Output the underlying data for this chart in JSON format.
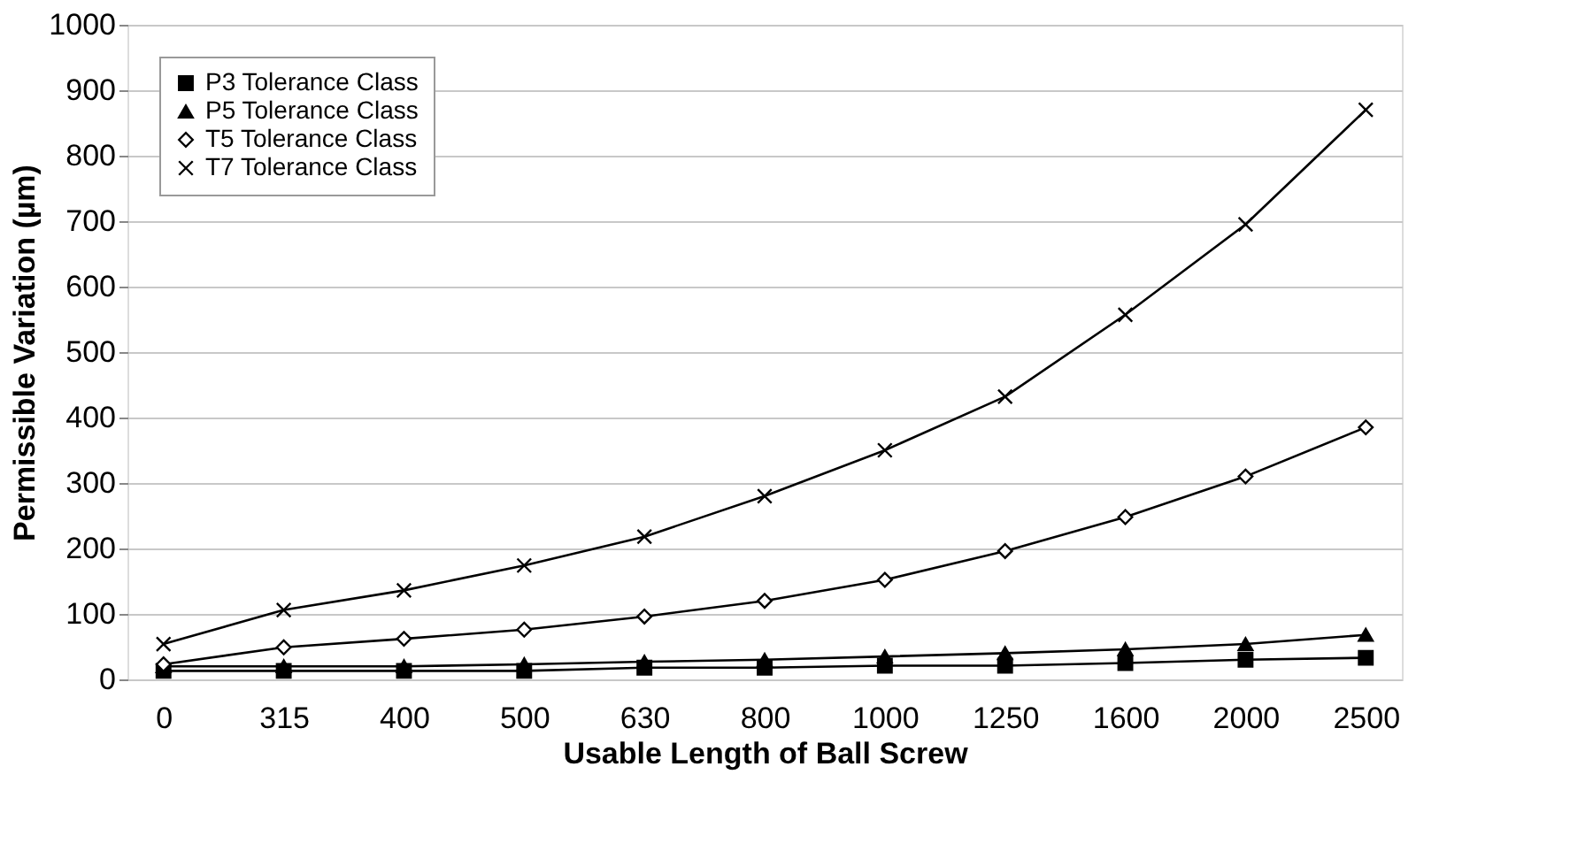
{
  "chart_data": {
    "type": "line",
    "xlabel": "Usable Length of Ball Screw",
    "ylabel": "Permissible Variation (µm)",
    "categories": [
      "0",
      "315",
      "400",
      "500",
      "630",
      "800",
      "1000",
      "1250",
      "1600",
      "2000",
      "2500"
    ],
    "ylim": [
      0,
      1000
    ],
    "yticks": [
      0,
      100,
      200,
      300,
      400,
      500,
      600,
      700,
      800,
      900,
      {
        "value": 1000,
        "label": "1000"
      }
    ],
    "grid": "y",
    "legend": "top left",
    "line_style": "solid",
    "series": [
      {
        "name": "P3 Tolerance Class",
        "color": "#000000",
        "marker": "square",
        "values": [
          13,
          13,
          13,
          13,
          18,
          18,
          21,
          21,
          25,
          30,
          33
        ]
      },
      {
        "name": "P5 Tolerance Class",
        "color": "#000000",
        "marker": "triangle",
        "values": [
          20,
          20,
          20,
          23,
          27,
          30,
          35,
          40,
          46,
          54,
          68
        ]
      },
      {
        "name": "T5 Tolerance Class",
        "color": "#000000",
        "marker": "diamond",
        "values": [
          23,
          49,
          62,
          76,
          96,
          120,
          152,
          196,
          248,
          310,
          385
        ]
      },
      {
        "name": "T7 Tolerance Class",
        "color": "#000000",
        "marker": "cross",
        "values": [
          54,
          106,
          136,
          174,
          218,
          280,
          350,
          432,
          557,
          695,
          870
        ]
      }
    ]
  }
}
